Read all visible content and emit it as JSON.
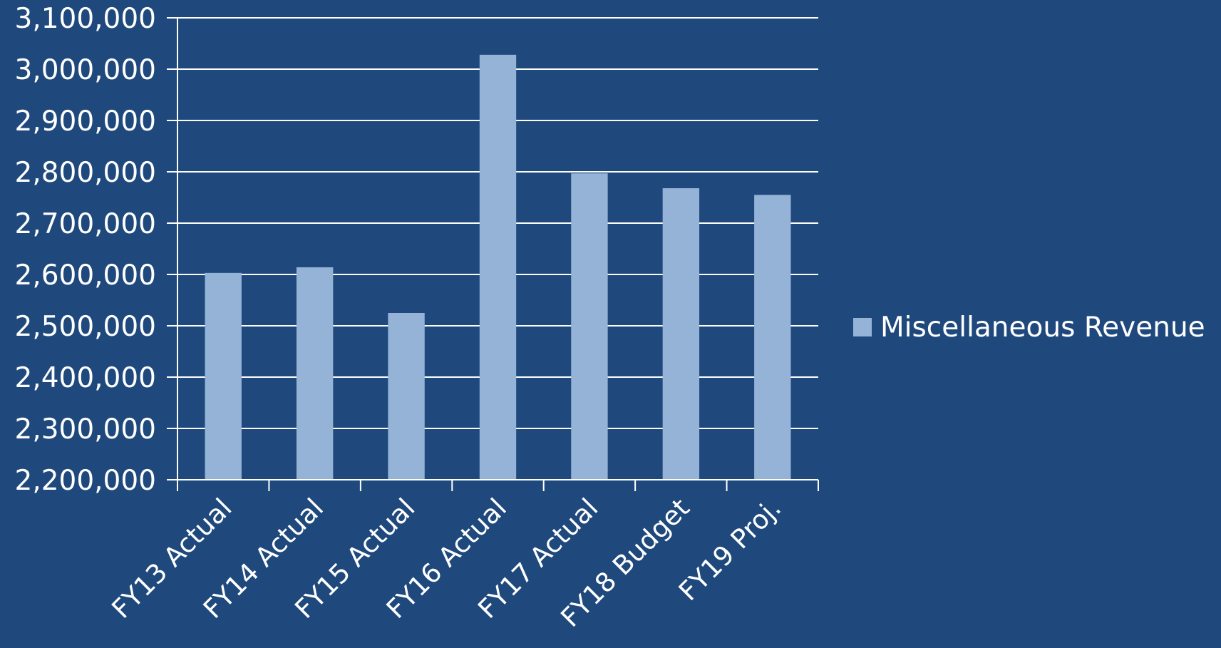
{
  "colors": {
    "background": "#1f497d",
    "bar": "#95b3d7",
    "gridline": "#ffffff",
    "text": "#ffffff"
  },
  "chart_data": {
    "type": "bar",
    "title": "",
    "xlabel": "",
    "ylabel": "",
    "categories": [
      "FY13 Actual",
      "FY14 Actual",
      "FY15 Actual",
      "FY16 Actual",
      "FY17 Actual",
      "FY18 Budget",
      "FY19 Proj."
    ],
    "series": [
      {
        "name": "Miscellaneous Revenue",
        "values": [
          2603000,
          2614000,
          2525000,
          3028000,
          2797000,
          2768000,
          2755000
        ]
      }
    ],
    "ylim": [
      2200000,
      3100000
    ],
    "yticks": [
      2200000,
      2300000,
      2400000,
      2500000,
      2600000,
      2700000,
      2800000,
      2900000,
      3000000,
      3100000
    ],
    "ytick_labels": [
      "2,200,000",
      "2,300,000",
      "2,400,000",
      "2,500,000",
      "2,600,000",
      "2,700,000",
      "2,800,000",
      "2,900,000",
      "3,000,000",
      "3,100,000"
    ],
    "grid": true,
    "legend": {
      "position": "right",
      "entries": [
        "Miscellaneous Revenue"
      ]
    }
  }
}
